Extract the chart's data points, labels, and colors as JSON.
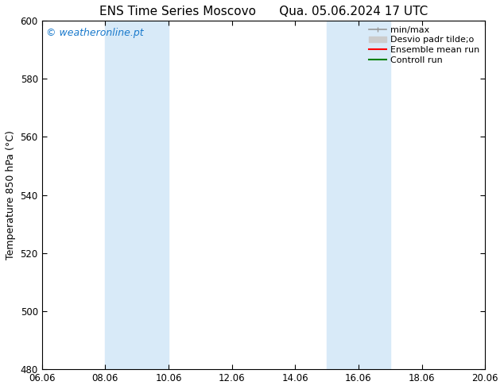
{
  "title_left": "ENS Time Series Moscovo",
  "title_right": "Qua. 05.06.2024 17 UTC",
  "ylabel": "Temperature 850 hPa (°C)",
  "ylim": [
    480,
    600
  ],
  "yticks": [
    480,
    500,
    520,
    540,
    560,
    580,
    600
  ],
  "xtick_positions": [
    6,
    8,
    10,
    12,
    14,
    16,
    18,
    20
  ],
  "xtick_labels": [
    "06.06",
    "08.06",
    "10.06",
    "12.06",
    "14.06",
    "16.06",
    "18.06",
    "20.06"
  ],
  "xlim": [
    6,
    20
  ],
  "watermark": "© weatheronline.pt",
  "watermark_color": "#1a7acc",
  "background_color": "#ffffff",
  "plot_bg_color": "#ffffff",
  "shaded_bands": [
    {
      "x_start": 8.0,
      "x_end": 10.0
    },
    {
      "x_start": 15.0,
      "x_end": 17.0
    }
  ],
  "shaded_color": "#d8eaf8",
  "legend_entries": [
    {
      "label": "min/max",
      "color": "#999999",
      "lw": 1.2,
      "type": "errbar"
    },
    {
      "label": "Desvio padr tilde;o",
      "color": "#cccccc",
      "lw": 8,
      "type": "patch"
    },
    {
      "label": "Ensemble mean run",
      "color": "#ff0000",
      "lw": 1.5,
      "type": "line"
    },
    {
      "label": "Controll run",
      "color": "#008000",
      "lw": 1.5,
      "type": "line"
    }
  ],
  "title_fontsize": 11,
  "axis_label_fontsize": 9,
  "tick_fontsize": 8.5,
  "watermark_fontsize": 9,
  "legend_fontsize": 8
}
